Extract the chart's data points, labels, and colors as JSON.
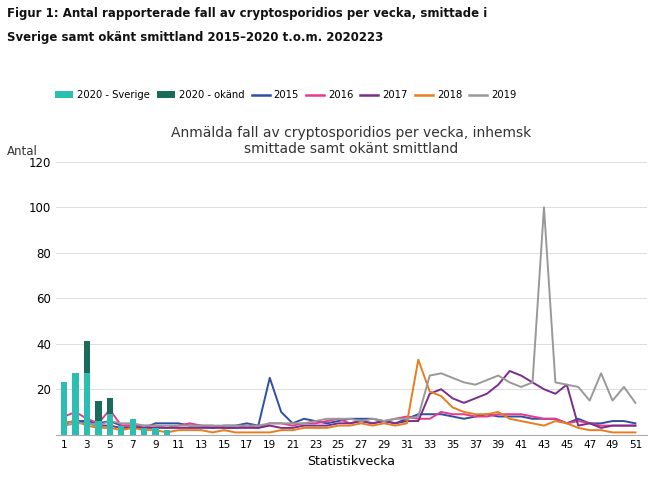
{
  "title": "Anmälda fall av cryptosporidios per vecka, inhemsk\nsmittade samt okänt smittland",
  "suptitle_line1": "Figur 1: Antal rapporterade fall av cryptosporidios per vecka, smittade i",
  "suptitle_line2": "Sverige samt okänt smittland 2015–2020 t.o.m. 2020223",
  "xlabel": "Statistikvecka",
  "ylabel": "Antal",
  "ylim": [
    0,
    120
  ],
  "yticks": [
    0,
    20,
    40,
    60,
    80,
    100,
    120
  ],
  "xticks": [
    1,
    3,
    5,
    7,
    9,
    11,
    13,
    15,
    17,
    19,
    21,
    23,
    25,
    27,
    29,
    31,
    33,
    35,
    37,
    39,
    41,
    43,
    45,
    47,
    49,
    51
  ],
  "background_color": "#ffffff",
  "plot_bg_color": "#ffffff",
  "sverige_2020_color": "#2abfb0",
  "okand_2020_color": "#1a6b5a",
  "y2015_color": "#2e4fa3",
  "y2016_color": "#e8398a",
  "y2017_color": "#7b2d8b",
  "y2018_color": "#e87d1e",
  "y2019_color": "#999999",
  "sverige_2020_bars": [
    23,
    27,
    27,
    6,
    9,
    4,
    7,
    3,
    3,
    2
  ],
  "okand_2020_bars": [
    0,
    0,
    14,
    9,
    7,
    0,
    0,
    0,
    0,
    0
  ],
  "sverige_2020_weeks": [
    1,
    2,
    3,
    4,
    5,
    6,
    7,
    8,
    9,
    10
  ],
  "y2015": [
    5,
    6,
    6,
    5,
    6,
    4,
    4,
    3,
    5,
    5,
    5,
    4,
    4,
    3,
    4,
    4,
    5,
    4,
    25,
    10,
    5,
    7,
    6,
    5,
    6,
    7,
    7,
    7,
    6,
    5,
    7,
    9,
    9,
    9,
    8,
    7,
    8,
    9,
    8,
    8,
    8,
    7,
    7,
    7,
    5,
    7,
    5,
    5,
    6,
    6,
    5
  ],
  "y2016": [
    8,
    10,
    7,
    5,
    11,
    4,
    4,
    4,
    4,
    3,
    4,
    5,
    4,
    4,
    3,
    3,
    4,
    3,
    5,
    5,
    4,
    5,
    5,
    6,
    7,
    5,
    6,
    5,
    6,
    7,
    8,
    7,
    7,
    10,
    9,
    9,
    8,
    8,
    9,
    9,
    9,
    8,
    7,
    7,
    5,
    6,
    5,
    4,
    4,
    4,
    4
  ],
  "y2017": [
    5,
    6,
    5,
    4,
    4,
    3,
    3,
    3,
    3,
    3,
    3,
    3,
    3,
    3,
    3,
    3,
    3,
    3,
    4,
    3,
    3,
    4,
    4,
    4,
    5,
    5,
    6,
    5,
    6,
    5,
    6,
    6,
    18,
    20,
    16,
    14,
    16,
    18,
    22,
    28,
    26,
    23,
    20,
    18,
    22,
    4,
    5,
    3,
    4,
    4,
    4
  ],
  "y2018": [
    5,
    6,
    4,
    3,
    3,
    2,
    3,
    2,
    2,
    1,
    2,
    2,
    2,
    1,
    2,
    1,
    1,
    1,
    1,
    2,
    2,
    3,
    3,
    3,
    4,
    4,
    5,
    4,
    5,
    4,
    5,
    33,
    19,
    17,
    12,
    10,
    9,
    9,
    10,
    7,
    6,
    5,
    4,
    6,
    5,
    3,
    2,
    2,
    1,
    1,
    1
  ],
  "y2019": [
    4,
    5,
    5,
    4,
    6,
    5,
    5,
    4,
    4,
    4,
    4,
    4,
    4,
    4,
    4,
    4,
    4,
    4,
    5,
    5,
    5,
    5,
    6,
    7,
    7,
    7,
    6,
    7,
    6,
    7,
    7,
    8,
    26,
    27,
    25,
    23,
    22,
    24,
    26,
    23,
    21,
    23,
    100,
    23,
    22,
    21,
    15,
    27,
    15,
    21,
    14
  ]
}
